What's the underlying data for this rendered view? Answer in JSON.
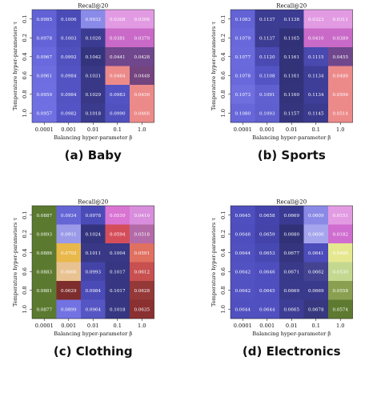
{
  "chart_data": [
    {
      "type": "heatmap",
      "title": "Recall@20",
      "caption": "(a) Baby",
      "xlabel": "Balancing hyper-parameter β",
      "ylabel": "Temperature hyper-parameters τ",
      "x": [
        "0.0001",
        "0.001",
        "0.01",
        "0.1",
        "1.0"
      ],
      "y": [
        "0.1",
        "0.2",
        "0.4",
        "0.6",
        "0.8",
        "1.0"
      ],
      "values": [
        [
          "0.0985",
          "0.1006",
          "0.0932",
          "0.0308",
          "0.0306"
        ],
        [
          "0.0978",
          "0.1003",
          "0.1026",
          "0.0381",
          "0.0379"
        ],
        [
          "0.0967",
          "0.0992",
          "0.1042",
          "0.0441",
          "0.0428"
        ],
        [
          "0.0961",
          "0.0984",
          "0.1031",
          "0.0464",
          "0.0448"
        ],
        [
          "0.0959",
          "0.0984",
          "0.1029",
          "0.0983",
          "0.0456"
        ],
        [
          "0.0957",
          "0.0982",
          "0.1018",
          "0.0990",
          "0.0466"
        ]
      ],
      "colors": [
        [
          "#6262d6",
          "#4b4bb8",
          "#8a8ae8",
          "#e29be3",
          "#e29be3"
        ],
        [
          "#6464d8",
          "#4d4dba",
          "#3b3b92",
          "#c96ac8",
          "#c96ac8"
        ],
        [
          "#6a6ade",
          "#5050bf",
          "#34347e",
          "#70478c",
          "#70478c"
        ],
        [
          "#6e6ee0",
          "#5353c4",
          "#383886",
          "#ec8a8a",
          "#74447f"
        ],
        [
          "#6f6fe2",
          "#5353c4",
          "#383886",
          "#5353c4",
          "#ec8a8a"
        ],
        [
          "#7070e3",
          "#5454c6",
          "#3b3b8e",
          "#5050bf",
          "#ec8a8a"
        ]
      ]
    },
    {
      "type": "heatmap",
      "title": "Recall@20",
      "caption": "(b) Sports",
      "xlabel": "Balancing hyper-parameter β",
      "ylabel": "Temperature hyper-parameters τ",
      "x": [
        "0.0001",
        "0.001",
        "0.01",
        "0.1",
        "1.0"
      ],
      "y": [
        "0.1",
        "0.2",
        "0.4",
        "0.6",
        "0.8",
        "1.0"
      ],
      "values": [
        [
          "0.1083",
          "0.1137",
          "0.1138",
          "0.0323",
          "0.0311"
        ],
        [
          "0.1079",
          "0.1137",
          "0.1165",
          "0.0410",
          "0.0389"
        ],
        [
          "0.1077",
          "0.1120",
          "0.1161",
          "0.1115",
          "0.0455"
        ],
        [
          "0.1078",
          "0.1108",
          "0.1161",
          "0.1134",
          "0.0486"
        ],
        [
          "0.1073",
          "0.1091",
          "0.1160",
          "0.1134",
          "0.0506"
        ],
        [
          "0.1080",
          "0.1093",
          "0.1157",
          "0.1145",
          "0.0514"
        ]
      ],
      "colors": [
        [
          "#6363d6",
          "#3c3c93",
          "#3c3c93",
          "#e29be3",
          "#e29be3"
        ],
        [
          "#6868da",
          "#3c3c93",
          "#313178",
          "#c96ac8",
          "#c96ac8"
        ],
        [
          "#6a6adc",
          "#4a4ab2",
          "#323279",
          "#4949af",
          "#70478c"
        ],
        [
          "#6969db",
          "#5454c4",
          "#323279",
          "#3e3e98",
          "#ec8a8a"
        ],
        [
          "#6f6fe0",
          "#6060d0",
          "#33337b",
          "#3e3e98",
          "#ec8a8a"
        ],
        [
          "#6767d9",
          "#5f5fcf",
          "#35357f",
          "#3a3a8e",
          "#ec8a8a"
        ]
      ]
    },
    {
      "type": "heatmap",
      "title": "Recall@20",
      "caption": "(c) Clothing",
      "xlabel": "Balancing hyper-parameter β",
      "ylabel": "Temperature hyper-parameters τ",
      "x": [
        "0.0001",
        "0.001",
        "0.01",
        "0.1",
        "1.0"
      ],
      "y": [
        "0.1",
        "0.2",
        "0.4",
        "0.6",
        "0.8",
        "1.0"
      ],
      "values": [
        [
          "0.0887",
          "0.0934",
          "0.0978",
          "0.0510",
          "0.0410"
        ],
        [
          "0.0893",
          "0.0911",
          "0.1024",
          "0.0594",
          "0.0518"
        ],
        [
          "0.0886",
          "0.0702",
          "0.1011",
          "0.1004",
          "0.0591"
        ],
        [
          "0.0883",
          "0.0666",
          "0.0993",
          "0.1017",
          "0.0612"
        ],
        [
          "0.0881",
          "0.0629",
          "0.0984",
          "0.1017",
          "0.0628"
        ],
        [
          "0.0877",
          "0.0899",
          "0.0964",
          "0.1018",
          "0.0635"
        ]
      ],
      "colors": [
        [
          "#5b7a30",
          "#6565d6",
          "#4b4bb8",
          "#d974d3",
          "#d88edc"
        ],
        [
          "#5b7a30",
          "#9a9ae8",
          "#34347e",
          "#d44e5a",
          "#b36aa8"
        ],
        [
          "#5b7a30",
          "#e8b84a",
          "#383886",
          "#383886",
          "#e07060"
        ],
        [
          "#5b7a30",
          "#e8c290",
          "#4444a8",
          "#363682",
          "#c85050"
        ],
        [
          "#5b7a30",
          "#7e2d2d",
          "#4b4bb8",
          "#363682",
          "#943838"
        ],
        [
          "#5b7a30",
          "#7272e2",
          "#5555c4",
          "#363682",
          "#8a3030"
        ]
      ]
    },
    {
      "type": "heatmap",
      "title": "Recall@20",
      "caption": "(d) Electronics",
      "xlabel": "Balancing hyper-parameter β",
      "ylabel": "Temperature hyper-parameters τ",
      "x": [
        "0.0001",
        "0.001",
        "0.01",
        "0.1",
        "1.0"
      ],
      "y": [
        "0.1",
        "0.2",
        "0.4",
        "0.6",
        "0.8",
        "1.0"
      ],
      "values": [
        [
          "0.0645",
          "0.0658",
          "0.0669",
          "0.0609",
          "0.0151"
        ],
        [
          "0.0646",
          "0.0659",
          "0.0680",
          "0.0600",
          "0.0182"
        ],
        [
          "0.0644",
          "0.0653",
          "0.0677",
          "0.0641",
          "0.0488"
        ],
        [
          "0.0642",
          "0.0646",
          "0.0671",
          "0.0662",
          "0.0530"
        ],
        [
          "0.0642",
          "0.0645",
          "0.0669",
          "0.0669",
          "0.0558"
        ],
        [
          "0.0644",
          "0.0644",
          "0.0665",
          "0.0678",
          "0.0574"
        ]
      ],
      "colors": [
        [
          "#4f4fbf",
          "#4444ac",
          "#3a3a93",
          "#8a8ae6",
          "#e29be3"
        ],
        [
          "#4e4ebe",
          "#4343aa",
          "#313178",
          "#a5a5ee",
          "#d06dd0"
        ],
        [
          "#5050c0",
          "#4848b2",
          "#35357f",
          "#4c4cba",
          "#e6e890"
        ],
        [
          "#5252c3",
          "#4e4ebe",
          "#393989",
          "#434392",
          "#c4d890"
        ],
        [
          "#5252c3",
          "#4f4fbf",
          "#3a3a8c",
          "#3a3a8c",
          "#8aa050"
        ],
        [
          "#5050c0",
          "#5050c0",
          "#3d3d95",
          "#37377f",
          "#5e7a30"
        ]
      ]
    }
  ]
}
